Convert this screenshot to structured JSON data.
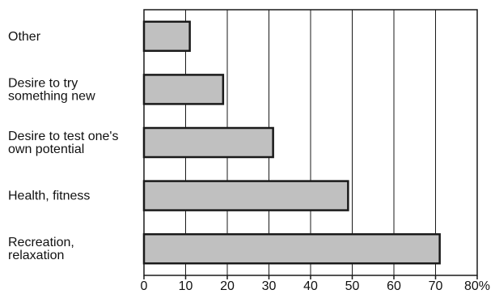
{
  "chart_data": {
    "type": "bar",
    "orientation": "horizontal",
    "title": "",
    "xlabel": "",
    "ylabel": "",
    "categories": [
      [
        "Other"
      ],
      [
        "Desire to try",
        "something new"
      ],
      [
        "Desire to test one's",
        "own potential"
      ],
      [
        "Health, fitness"
      ],
      [
        "Recreation,",
        "relaxation"
      ]
    ],
    "values": [
      11,
      19,
      31,
      49,
      71
    ],
    "xlim": [
      0,
      80
    ],
    "xticks": [
      "0",
      "10",
      "20",
      "30",
      "40",
      "50",
      "60",
      "70",
      "80%"
    ],
    "grid": "vertical",
    "colors": {
      "bar_fill": "#c0c0c0",
      "bar_stroke": "#1a1a1a",
      "grid": "#1a1a1a",
      "axis": "#1a1a1a"
    }
  }
}
